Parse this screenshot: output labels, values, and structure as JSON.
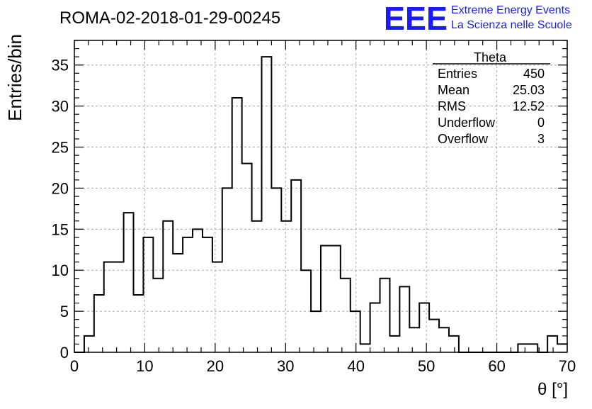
{
  "chart_data": {
    "type": "bar",
    "title": "ROMA-02-2018-01-29-00245",
    "xlabel": "θ [°]",
    "ylabel": "Entries/bin",
    "xlim": [
      0,
      70
    ],
    "ylim": [
      0,
      38
    ],
    "bin_width": 1.4,
    "bin_edges_start": 0,
    "values": [
      0,
      2,
      7,
      11,
      11,
      17,
      7,
      14,
      9,
      16,
      12,
      14,
      15,
      14,
      11,
      20,
      31,
      23,
      16,
      36,
      20,
      16,
      21,
      10,
      5,
      13,
      13,
      9,
      5,
      1,
      6,
      9,
      2,
      8,
      3,
      6,
      4,
      3,
      2,
      0,
      0,
      0,
      0,
      0,
      0,
      1,
      1,
      0,
      2,
      1
    ],
    "x_ticks": [
      0,
      10,
      20,
      30,
      40,
      50,
      60,
      70
    ],
    "y_ticks": [
      0,
      5,
      10,
      15,
      20,
      25,
      30,
      35
    ],
    "grid": true,
    "line_color": "#000000",
    "grid_color": "#aaaaaa",
    "stats_box": {
      "title": "Theta",
      "rows": [
        {
          "label": "Entries",
          "value": "450"
        },
        {
          "label": "Mean",
          "value": "25.03"
        },
        {
          "label": "RMS",
          "value": "12.52"
        },
        {
          "label": "Underflow",
          "value": "0"
        },
        {
          "label": "Overflow",
          "value": "3"
        }
      ]
    }
  },
  "logo": {
    "text": "EEE",
    "line1": "Extreme Energy Events",
    "line2": "La Scienza nelle Scuole",
    "color": "#1a1aff"
  }
}
